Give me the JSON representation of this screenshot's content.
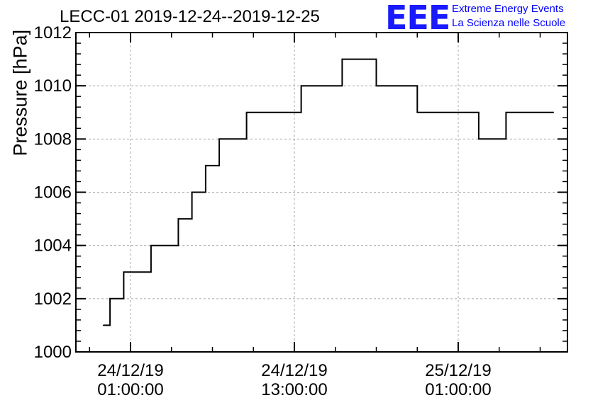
{
  "title": "LECC-01 2019-12-24--2019-12-25",
  "logo": {
    "mark": "EEE",
    "line1": "Extreme Energy Events",
    "line2": "La Scienza nelle Scuole"
  },
  "chart_data": {
    "type": "line",
    "title": "LECC-01 2019-12-24--2019-12-25",
    "xlabel": "",
    "ylabel": "Pressure [hPa]",
    "ylim": [
      1000,
      1012
    ],
    "xlim": [
      "2019-12-23 21:00",
      "2019-12-25 09:00"
    ],
    "yticks": [
      1000,
      1002,
      1004,
      1006,
      1008,
      1010,
      1012
    ],
    "xticks": [
      {
        "date": "24/12/19",
        "time": "01:00:00"
      },
      {
        "date": "24/12/19",
        "time": "13:00:00"
      },
      {
        "date": "25/12/19",
        "time": "01:00:00"
      }
    ],
    "grid": true,
    "step": true,
    "series": [
      {
        "x": [
          "2019-12-23 23:00",
          "2019-12-23 23:30",
          "2019-12-24 00:30",
          "2019-12-24 02:30",
          "2019-12-24 04:30",
          "2019-12-24 05:30",
          "2019-12-24 06:30",
          "2019-12-24 07:30",
          "2019-12-24 09:30",
          "2019-12-24 13:30",
          "2019-12-24 16:30",
          "2019-12-24 19:00",
          "2019-12-24 22:00",
          "2019-12-25 02:30",
          "2019-12-25 04:30",
          "2019-12-25 07:00"
        ],
        "values": [
          1001,
          1002,
          1003,
          1004,
          1005,
          1006,
          1007,
          1008,
          1009,
          1010,
          1011,
          1010,
          1009,
          1008,
          1009,
          1009
        ]
      }
    ]
  }
}
